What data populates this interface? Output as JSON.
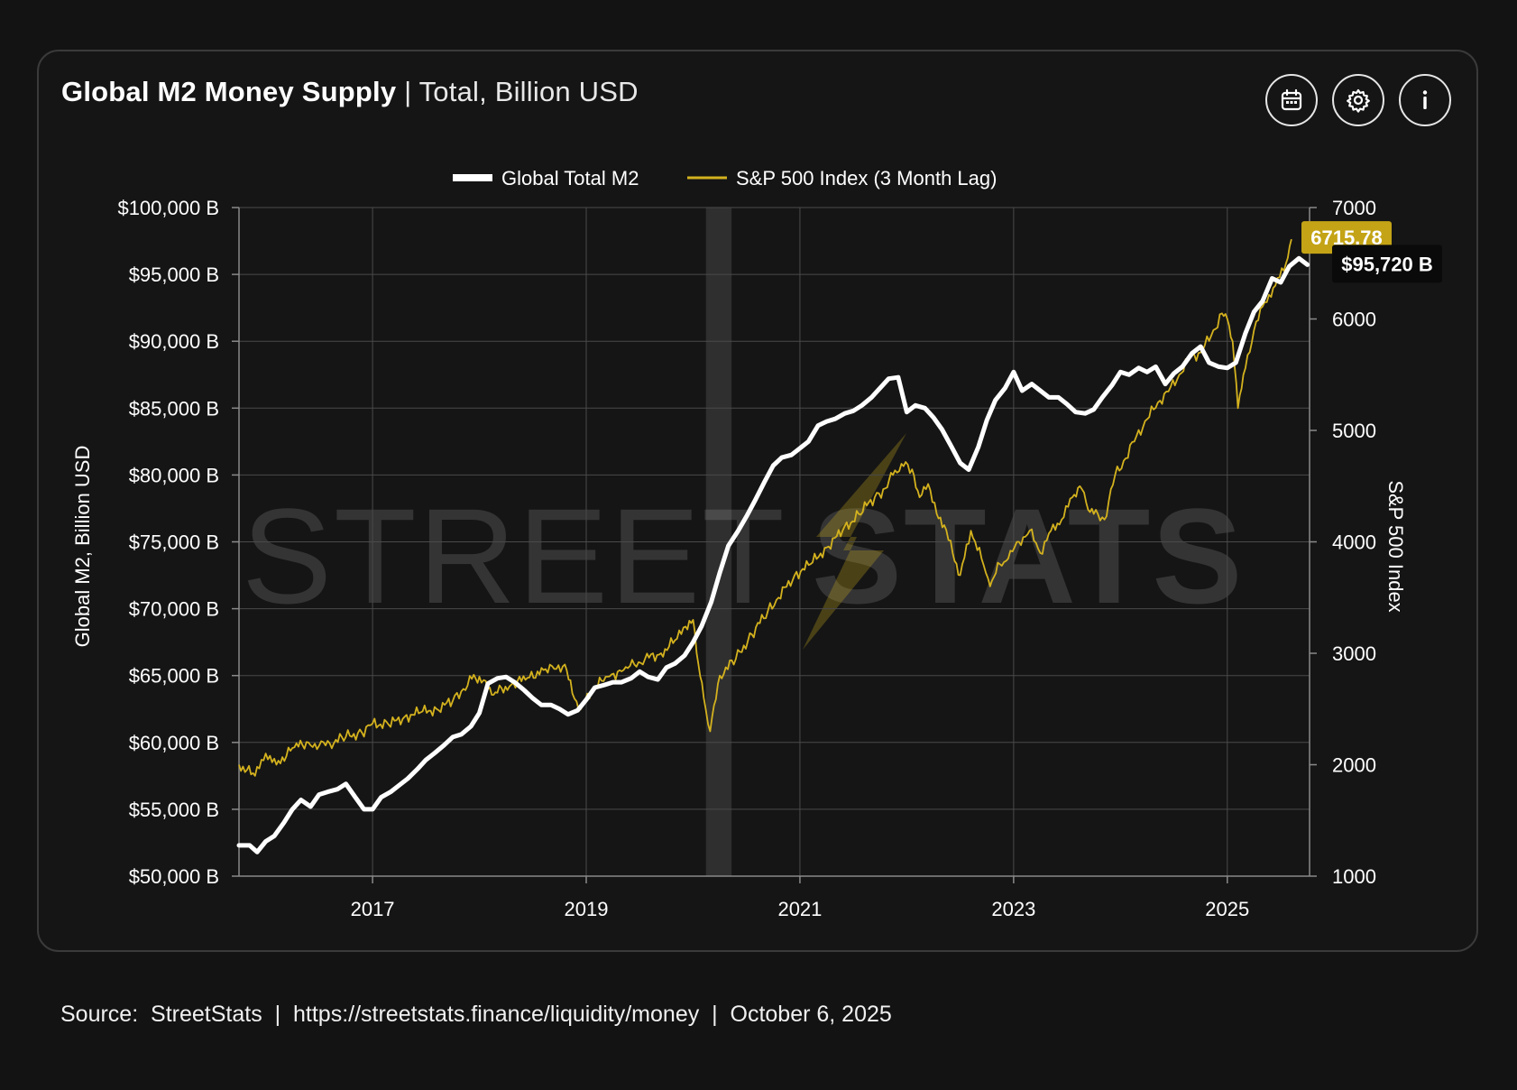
{
  "header": {
    "title": "Global M2 Money Supply",
    "separator": " | ",
    "subtitle": "Total, Billion USD"
  },
  "toolbar": {
    "buttons": [
      {
        "icon": "calendar-icon"
      },
      {
        "icon": "gear-icon"
      },
      {
        "icon": "info-icon"
      }
    ]
  },
  "watermark": {
    "left_text": "STREET",
    "right_text": "STATS"
  },
  "chart_data": {
    "type": "line",
    "legend_placement": "top-center",
    "grid": true,
    "x_axis": {
      "tick_labels": [
        "2017",
        "2019",
        "2021",
        "2023",
        "2025"
      ],
      "tick_years": [
        2017,
        2019,
        2021,
        2023,
        2025
      ],
      "range": [
        2015.75,
        2025.77
      ]
    },
    "y_left": {
      "label": "Global M2, Billion USD",
      "range": [
        50000,
        100000
      ],
      "tick_values": [
        50000,
        55000,
        60000,
        65000,
        70000,
        75000,
        80000,
        85000,
        90000,
        95000,
        100000
      ],
      "tick_labels": [
        "$50,000 B",
        "$55,000 B",
        "$60,000 B",
        "$65,000 B",
        "$70,000 B",
        "$75,000 B",
        "$80,000 B",
        "$85,000 B",
        "$90,000 B",
        "$95,000 B",
        "$100,000 B"
      ]
    },
    "y_right": {
      "label": "S&P 500 Index",
      "range": [
        1000,
        7000
      ],
      "tick_values": [
        1000,
        2000,
        3000,
        4000,
        5000,
        6000,
        7000
      ],
      "tick_labels": [
        "1000",
        "2000",
        "3000",
        "4000",
        "5000",
        "6000",
        "7000"
      ]
    },
    "shaded_band": {
      "x_start": 2020.12,
      "x_end": 2020.36,
      "color": "#2f2f2f"
    },
    "series": [
      {
        "name": "Global Total M2",
        "axis": "left",
        "color": "#ffffff",
        "last_value_label": "$95,720 B",
        "x": [
          2015.75,
          2015.85,
          2015.92,
          2016.0,
          2016.08,
          2016.17,
          2016.25,
          2016.33,
          2016.42,
          2016.5,
          2016.58,
          2016.67,
          2016.75,
          2016.83,
          2016.92,
          2017.0,
          2017.08,
          2017.17,
          2017.25,
          2017.33,
          2017.42,
          2017.5,
          2017.58,
          2017.67,
          2017.75,
          2017.83,
          2017.92,
          2018.0,
          2018.08,
          2018.17,
          2018.25,
          2018.33,
          2018.42,
          2018.5,
          2018.58,
          2018.67,
          2018.75,
          2018.83,
          2018.92,
          2019.0,
          2019.08,
          2019.17,
          2019.25,
          2019.33,
          2019.42,
          2019.5,
          2019.58,
          2019.67,
          2019.75,
          2019.83,
          2019.92,
          2020.0,
          2020.08,
          2020.17,
          2020.25,
          2020.33,
          2020.42,
          2020.5,
          2020.58,
          2020.67,
          2020.75,
          2020.83,
          2020.92,
          2021.0,
          2021.08,
          2021.17,
          2021.25,
          2021.33,
          2021.42,
          2021.5,
          2021.58,
          2021.67,
          2021.75,
          2021.83,
          2021.92,
          2022.0,
          2022.08,
          2022.17,
          2022.25,
          2022.33,
          2022.42,
          2022.5,
          2022.58,
          2022.67,
          2022.75,
          2022.83,
          2022.92,
          2023.0,
          2023.08,
          2023.17,
          2023.25,
          2023.33,
          2023.42,
          2023.5,
          2023.58,
          2023.67,
          2023.75,
          2023.83,
          2023.92,
          2024.0,
          2024.08,
          2024.17,
          2024.25,
          2024.33,
          2024.42,
          2024.5,
          2024.58,
          2024.67,
          2024.75,
          2024.83,
          2024.92,
          2025.0,
          2025.08,
          2025.17,
          2025.25,
          2025.33,
          2025.42,
          2025.5,
          2025.58,
          2025.67,
          2025.75
        ],
        "values": [
          52300,
          52300,
          51800,
          52600,
          53000,
          54000,
          55000,
          55700,
          55200,
          56100,
          56300,
          56500,
          56900,
          56000,
          55000,
          55000,
          55900,
          56300,
          56800,
          57300,
          58000,
          58700,
          59200,
          59800,
          60400,
          60600,
          61200,
          62200,
          64400,
          64800,
          64900,
          64500,
          63900,
          63300,
          62800,
          62800,
          62500,
          62100,
          62400,
          63200,
          64100,
          64300,
          64500,
          64500,
          64800,
          65300,
          64900,
          64700,
          65600,
          65900,
          66500,
          67500,
          68700,
          70500,
          72700,
          74700,
          75800,
          76900,
          78100,
          79500,
          80700,
          81300,
          81500,
          82000,
          82500,
          83700,
          84000,
          84200,
          84600,
          84800,
          85200,
          85800,
          86500,
          87200,
          87300,
          84700,
          85200,
          85000,
          84300,
          83400,
          82100,
          80900,
          80400,
          82100,
          84100,
          85600,
          86500,
          87700,
          86300,
          86800,
          86300,
          85800,
          85800,
          85300,
          84700,
          84600,
          84900,
          85800,
          86700,
          87700,
          87500,
          88000,
          87700,
          88100,
          86800,
          87600,
          88100,
          89100,
          89600,
          88400,
          88100,
          88000,
          88400,
          90600,
          92200,
          93000,
          94700,
          94400,
          95600,
          96200,
          95720
        ]
      },
      {
        "name": "S&P 500 Index (3 Month Lag)",
        "axis": "right",
        "color": "#d4b21e",
        "last_value_label": "6715.78",
        "x": [
          2015.75,
          2015.9,
          2016.0,
          2016.1,
          2016.25,
          2016.4,
          2016.5,
          2016.6,
          2016.75,
          2016.9,
          2017.0,
          2017.15,
          2017.3,
          2017.45,
          2017.6,
          2017.75,
          2017.85,
          2017.93,
          2018.0,
          2018.08,
          2018.15,
          2018.3,
          2018.45,
          2018.6,
          2018.7,
          2018.8,
          2018.87,
          2018.95,
          2019.05,
          2019.2,
          2019.35,
          2019.45,
          2019.55,
          2019.7,
          2019.85,
          2019.93,
          2020.0,
          2020.05,
          2020.1,
          2020.16,
          2020.25,
          2020.4,
          2020.55,
          2020.7,
          2020.8,
          2020.95,
          2021.1,
          2021.25,
          2021.4,
          2021.55,
          2021.7,
          2021.8,
          2021.87,
          2021.95,
          2022.05,
          2022.12,
          2022.2,
          2022.28,
          2022.35,
          2022.43,
          2022.5,
          2022.6,
          2022.7,
          2022.78,
          2022.87,
          2022.95,
          2023.05,
          2023.15,
          2023.25,
          2023.35,
          2023.45,
          2023.55,
          2023.62,
          2023.68,
          2023.75,
          2023.85,
          2023.95,
          2024.05,
          2024.15,
          2024.25,
          2024.35,
          2024.45,
          2024.55,
          2024.65,
          2024.75,
          2024.85,
          2024.95,
          2025.0,
          2025.05,
          2025.1,
          2025.15,
          2025.25,
          2025.35,
          2025.45,
          2025.55,
          2025.6
        ],
        "values": [
          2000,
          1900,
          2100,
          2000,
          2150,
          2200,
          2170,
          2190,
          2250,
          2290,
          2370,
          2360,
          2430,
          2470,
          2500,
          2570,
          2680,
          2770,
          2790,
          2680,
          2650,
          2720,
          2780,
          2850,
          2860,
          2900,
          2640,
          2500,
          2670,
          2790,
          2850,
          2900,
          2950,
          3000,
          3130,
          3240,
          3300,
          2900,
          2600,
          2300,
          2800,
          2950,
          3170,
          3380,
          3500,
          3700,
          3800,
          3950,
          4100,
          4250,
          4400,
          4480,
          4600,
          4700,
          4650,
          4400,
          4520,
          4250,
          4150,
          3900,
          3700,
          4100,
          3850,
          3600,
          3800,
          3850,
          4000,
          4100,
          3900,
          4100,
          4200,
          4400,
          4500,
          4350,
          4250,
          4200,
          4600,
          4750,
          4950,
          5100,
          5250,
          5350,
          5500,
          5650,
          5700,
          5850,
          6050,
          6000,
          5800,
          5200,
          5500,
          5900,
          6150,
          6300,
          6500,
          6715.78
        ]
      }
    ]
  },
  "footer": {
    "source_label": "Source:  StreetStats",
    "url": "https://streetstats.finance/liquidity/money",
    "date": "October 6, 2025",
    "divider": "  |  "
  }
}
